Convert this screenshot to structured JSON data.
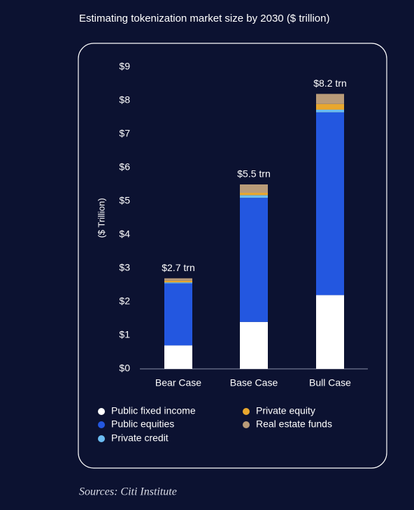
{
  "chart_data": {
    "type": "stacked_bar",
    "title": "Estimating tokenization market size by 2030 ($ trillion)",
    "y_label": "($ Trillion)",
    "categories": [
      "Bear Case",
      "Base Case",
      "Bull Case"
    ],
    "series": [
      {
        "name": "Public fixed income",
        "color": "#ffffff",
        "values": [
          0.7,
          1.4,
          2.2
        ]
      },
      {
        "name": "Public equities",
        "color": "#2357e0",
        "values": [
          1.85,
          3.7,
          5.45
        ]
      },
      {
        "name": "Private credit",
        "color": "#6bbcf2",
        "values": [
          0.03,
          0.08,
          0.08
        ]
      },
      {
        "name": "Private equity",
        "color": "#e8a72e",
        "values": [
          0.05,
          0.07,
          0.17
        ]
      },
      {
        "name": "Real estate funds",
        "color": "#b99b78",
        "values": [
          0.07,
          0.25,
          0.3
        ]
      }
    ],
    "totals": [
      2.7,
      5.5,
      8.2
    ],
    "total_labels": [
      "$2.7 trn",
      "$5.5 trn",
      "$8.2 trn"
    ],
    "ylim": [
      0,
      9
    ],
    "yticks": [
      {
        "value": 0,
        "label": "$0"
      },
      {
        "value": 1,
        "label": "$1"
      },
      {
        "value": 2,
        "label": "$2"
      },
      {
        "value": 3,
        "label": "$3"
      },
      {
        "value": 4,
        "label": "$4"
      },
      {
        "value": 5,
        "label": "$5"
      },
      {
        "value": 6,
        "label": "$6"
      },
      {
        "value": 7,
        "label": "$7"
      },
      {
        "value": 8,
        "label": "$8"
      },
      {
        "value": 9,
        "label": "$9"
      }
    ],
    "source": "Sources: Citi Institute"
  }
}
